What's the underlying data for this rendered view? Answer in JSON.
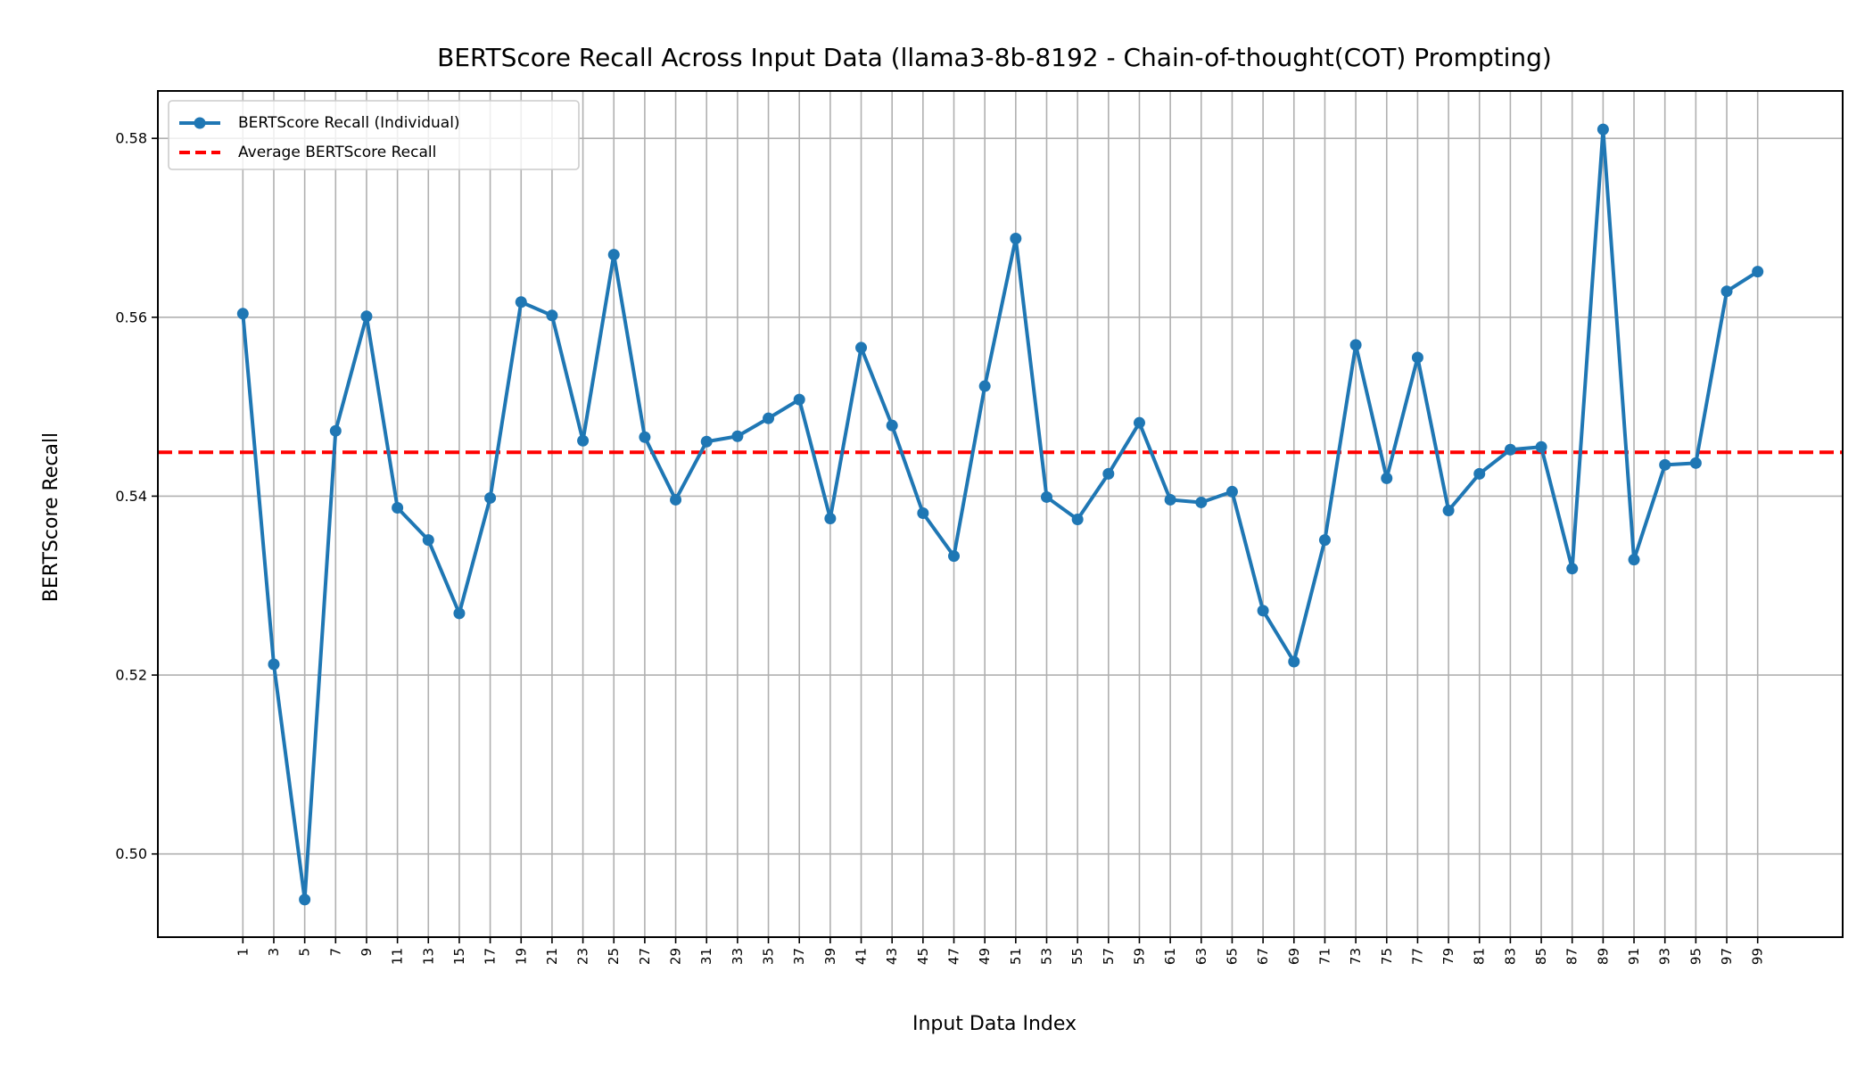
{
  "chart_data": {
    "type": "line",
    "title": "BERTScore Recall Across Input Data (llama3-8b-8192 - Chain-of-thought(COT) Prompting)",
    "xlabel": "Input Data Index",
    "ylabel": "BERTScore Recall",
    "xlim": [
      -4.5,
      104.5
    ],
    "ylim": [
      0.4907,
      0.5853
    ],
    "yticks": [
      0.5,
      0.52,
      0.54,
      0.56,
      0.58
    ],
    "ytick_labels": [
      "0.50",
      "0.52",
      "0.54",
      "0.56",
      "0.58"
    ],
    "xticks": [
      1,
      3,
      5,
      7,
      9,
      11,
      13,
      15,
      17,
      19,
      21,
      23,
      25,
      27,
      29,
      31,
      33,
      35,
      37,
      39,
      41,
      43,
      45,
      47,
      49,
      51,
      53,
      55,
      57,
      59,
      61,
      63,
      65,
      67,
      69,
      71,
      73,
      75,
      77,
      79,
      81,
      83,
      85,
      87,
      89,
      91,
      93,
      95,
      97,
      99
    ],
    "xtick_labels": [
      "1",
      "3",
      "5",
      "7",
      "9",
      "11",
      "13",
      "15",
      "17",
      "19",
      "21",
      "23",
      "25",
      "27",
      "29",
      "31",
      "33",
      "35",
      "37",
      "39",
      "41",
      "43",
      "45",
      "47",
      "49",
      "51",
      "53",
      "55",
      "57",
      "59",
      "61",
      "63",
      "65",
      "67",
      "69",
      "71",
      "73",
      "75",
      "77",
      "79",
      "81",
      "83",
      "85",
      "87",
      "89",
      "91",
      "93",
      "95",
      "97",
      "99"
    ],
    "grid": true,
    "legend_placement": "top-left",
    "series": [
      {
        "name": "BERTScore Recall (Individual)",
        "color": "#1f77b4",
        "marker": "circle",
        "x": [
          1,
          3,
          5,
          7,
          9,
          11,
          13,
          15,
          17,
          19,
          21,
          23,
          25,
          27,
          29,
          31,
          33,
          35,
          37,
          39,
          41,
          43,
          45,
          47,
          49,
          51,
          53,
          55,
          57,
          59,
          61,
          63,
          65,
          67,
          69,
          71,
          73,
          75,
          77,
          79,
          81,
          83,
          85,
          87,
          89,
          91,
          93,
          95,
          97,
          99
        ],
        "values": [
          0.5604,
          0.5212,
          0.4949,
          0.5473,
          0.5601,
          0.5387,
          0.5351,
          0.5269,
          0.5398,
          0.5617,
          0.5602,
          0.5462,
          0.567,
          0.5466,
          0.5396,
          0.5461,
          0.5467,
          0.5487,
          0.5508,
          0.5375,
          0.5566,
          0.5479,
          0.5381,
          0.5333,
          0.5523,
          0.5688,
          0.5399,
          0.5374,
          0.5425,
          0.5482,
          0.5396,
          0.5393,
          0.5405,
          0.5272,
          0.5215,
          0.5351,
          0.5569,
          0.542,
          0.5555,
          0.5384,
          0.5425,
          0.5452,
          0.5455,
          0.5319,
          0.581,
          0.5329,
          0.5435,
          0.5437,
          0.5629,
          0.5651
        ]
      },
      {
        "name": "Average BERTScore Recall",
        "color": "#ff0000",
        "style": "dashed",
        "value": 0.5449
      }
    ]
  }
}
